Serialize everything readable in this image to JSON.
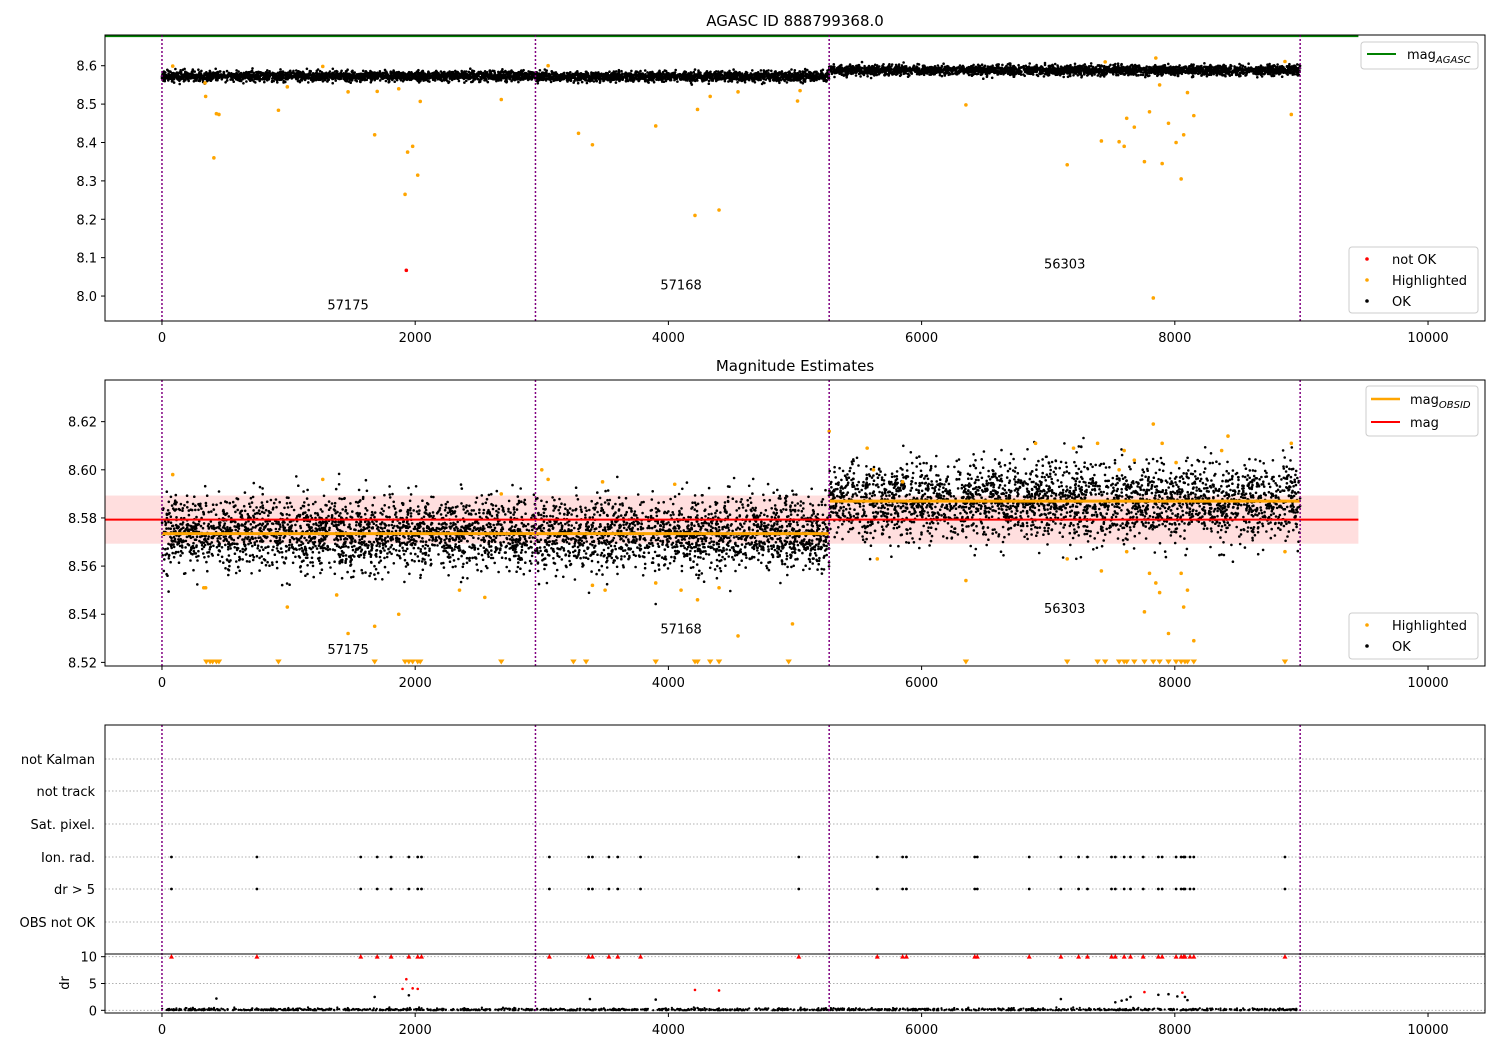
{
  "chart_data": [
    {
      "type": "scatter",
      "title": "AGASC ID 888799368.0",
      "xlim": [
        -450,
        10450
      ],
      "ylim": [
        7.935,
        8.68
      ],
      "x_ticks": [
        0,
        2000,
        4000,
        6000,
        8000,
        10000
      ],
      "y_ticks": [
        8.0,
        8.1,
        8.2,
        8.3,
        8.4,
        8.5,
        8.6
      ],
      "obsid_boundaries": [
        0,
        2950,
        5270,
        8990
      ],
      "obsid_labels": [
        {
          "text": "57175",
          "x": 1470,
          "y": 7.965
        },
        {
          "text": "57168",
          "x": 4100,
          "y": 8.017
        },
        {
          "text": "56303",
          "x": 7130,
          "y": 8.072
        }
      ],
      "mag_agasc": 8.677,
      "mag_agasc_range": [
        -450,
        9450
      ],
      "legend_upper": [
        {
          "name": "mag",
          "sub": "AGASC",
          "color": "#008000"
        }
      ],
      "legend_lower": [
        {
          "name": "not OK",
          "color": "#ff0000"
        },
        {
          "name": "Highlighted",
          "color": "#ffa500"
        },
        {
          "name": "OK",
          "color": "#000000"
        }
      ],
      "series": [
        {
          "name": "OK",
          "color": "#000000",
          "segments": [
            {
              "x": [
                0,
                2950
              ],
              "mean": 8.573,
              "sd": 0.007
            },
            {
              "x": [
                2950,
                5270
              ],
              "mean": 8.572,
              "sd": 0.007
            },
            {
              "x": [
                5270,
                8990
              ],
              "mean": 8.588,
              "sd": 0.0075
            }
          ]
        },
        {
          "name": "Highlighted",
          "color": "#ffa500",
          "x": [
            85,
            340,
            345,
            410,
            430,
            450,
            920,
            990,
            1270,
            1470,
            1680,
            1700,
            1870,
            1920,
            1940,
            1980,
            2020,
            2040,
            2680,
            3050,
            3290,
            3400,
            3900,
            4210,
            4230,
            4330,
            4400,
            4550,
            5020,
            5040,
            6350,
            7150,
            7420,
            7450,
            7560,
            7600,
            7620,
            7680,
            7760,
            7800,
            7830,
            7850,
            7880,
            7900,
            7950,
            8010,
            8050,
            8070,
            8100,
            8150,
            8870,
            8920
          ],
          "y": [
            8.599,
            8.555,
            8.52,
            8.36,
            8.475,
            8.473,
            8.484,
            8.545,
            8.598,
            8.532,
            8.42,
            8.533,
            8.54,
            8.265,
            8.375,
            8.39,
            8.315,
            8.507,
            8.512,
            8.6,
            8.424,
            8.394,
            8.443,
            8.21,
            8.486,
            8.52,
            8.224,
            8.532,
            8.508,
            8.535,
            8.498,
            8.342,
            8.404,
            8.61,
            8.402,
            8.39,
            8.463,
            8.44,
            8.35,
            8.48,
            7.995,
            8.62,
            8.55,
            8.345,
            8.45,
            8.4,
            8.305,
            8.42,
            8.53,
            8.47,
            8.611,
            8.473
          ]
        },
        {
          "name": "not OK",
          "color": "#ff0000",
          "x": [
            1930
          ],
          "y": [
            8.067
          ]
        }
      ]
    },
    {
      "type": "scatter",
      "title": "Magnitude Estimates",
      "xlim": [
        -450,
        10450
      ],
      "ylim": [
        8.5185,
        8.6373
      ],
      "x_ticks": [
        0,
        2000,
        4000,
        6000,
        8000,
        10000
      ],
      "y_ticks": [
        8.52,
        8.54,
        8.56,
        8.58,
        8.6,
        8.62
      ],
      "obsid_boundaries": [
        0,
        2950,
        5270,
        8990
      ],
      "obsid_labels": [
        {
          "text": "57175",
          "x": 1470,
          "y": 8.5235
        },
        {
          "text": "57168",
          "x": 4100,
          "y": 8.532
        },
        {
          "text": "56303",
          "x": 7130,
          "y": 8.5405
        }
      ],
      "mag": 8.5793,
      "mag_band": [
        8.5693,
        8.5893
      ],
      "mag_range": [
        -450,
        9450
      ],
      "mag_obsid": [
        {
          "x": [
            0,
            2950
          ],
          "y": 8.5735
        },
        {
          "x": [
            2950,
            5270
          ],
          "y": 8.5735
        },
        {
          "x": [
            5270,
            8990
          ],
          "y": 8.587
        }
      ],
      "legend_upper": [
        {
          "name": "mag",
          "sub": "OBSID",
          "color": "#ffa500"
        },
        {
          "name": "mag",
          "sub": "",
          "color": "#ff0000"
        }
      ],
      "legend_lower": [
        {
          "name": "Highlighted",
          "color": "#ffa500"
        },
        {
          "name": "OK",
          "color": "#000000"
        }
      ],
      "series": [
        {
          "name": "OK",
          "color": "#000000",
          "segments": [
            {
              "x": [
                0,
                2950
              ],
              "mean": 8.5735,
              "sd": 0.0075
            },
            {
              "x": [
                2950,
                5270
              ],
              "mean": 8.5735,
              "sd": 0.0075
            },
            {
              "x": [
                5270,
                8990
              ],
              "mean": 8.587,
              "sd": 0.008
            }
          ]
        },
        {
          "name": "Highlighted",
          "color": "#ffa500",
          "x": [
            85,
            330,
            345,
            990,
            1270,
            1380,
            1470,
            1680,
            1870,
            2350,
            2550,
            2680,
            3000,
            3050,
            3400,
            3480,
            3500,
            3900,
            4050,
            4100,
            4230,
            4400,
            4550,
            4980,
            5270,
            5570,
            5620,
            5650,
            5850,
            6350,
            6900,
            7150,
            7200,
            7390,
            7420,
            7560,
            7600,
            7620,
            7680,
            7760,
            7800,
            7830,
            7850,
            7880,
            7900,
            7950,
            8010,
            8050,
            8070,
            8100,
            8150,
            8370,
            8420,
            8870,
            8920
          ],
          "y": [
            8.598,
            8.551,
            8.551,
            8.543,
            8.596,
            8.548,
            8.532,
            8.535,
            8.54,
            8.55,
            8.547,
            8.59,
            8.6,
            8.596,
            8.552,
            8.595,
            8.55,
            8.553,
            8.594,
            8.55,
            8.546,
            8.551,
            8.531,
            8.536,
            8.616,
            8.609,
            8.6,
            8.563,
            8.595,
            8.554,
            8.611,
            8.563,
            8.609,
            8.611,
            8.558,
            8.6,
            8.608,
            8.566,
            8.604,
            8.541,
            8.557,
            8.619,
            8.553,
            8.549,
            8.611,
            8.532,
            8.603,
            8.557,
            8.543,
            8.55,
            8.529,
            8.608,
            8.614,
            8.566,
            8.611
          ]
        },
        {
          "name": "Highlighted (below axis)",
          "color": "#ffa500",
          "marker": "triangle-down",
          "y_value": "below 8.52",
          "x": [
            350,
            380,
            400,
            430,
            450,
            920,
            1680,
            1920,
            1950,
            1980,
            2020,
            2040,
            2680,
            3250,
            3350,
            3900,
            4210,
            4230,
            4330,
            4400,
            4950,
            6350,
            7150,
            7390,
            7450,
            7560,
            7600,
            7620,
            7680,
            7760,
            7830,
            7880,
            7950,
            8010,
            8050,
            8080,
            8100,
            8150,
            8870
          ]
        }
      ]
    },
    {
      "type": "scatter",
      "title": "",
      "xlim": [
        -450,
        10450
      ],
      "x_ticks": [
        0,
        2000,
        4000,
        6000,
        8000,
        10000
      ],
      "obsid_boundaries": [
        0,
        2950,
        5270,
        8990
      ],
      "flag_rows": [
        "not Kalman",
        "not track",
        "Sat. pixel.",
        "Ion. rad.",
        "dr > 5",
        "OBS not OK"
      ],
      "flag_x": [
        75,
        750,
        1570,
        1700,
        1810,
        1950,
        2020,
        2050,
        3060,
        3370,
        3400,
        3530,
        3600,
        3780,
        5030,
        5650,
        5850,
        5880,
        6420,
        6440,
        6850,
        7100,
        7240,
        7310,
        7500,
        7530,
        7600,
        7650,
        7750,
        7870,
        7900,
        8010,
        8050,
        8070,
        8080,
        8120,
        8150,
        8870
      ],
      "dr": {
        "ylabel": "dr",
        "ylim": [
          -0.5,
          10.5
        ],
        "y_ticks": [
          0,
          5,
          10
        ],
        "typical_max": 0.5,
        "clipped_at": 10,
        "outliers_x": [
          430,
          1680,
          1900,
          1930,
          1950,
          1980,
          2020,
          3380,
          3900,
          4210,
          4400,
          7100,
          7530,
          7580,
          7620,
          7650,
          7760,
          7870,
          7950,
          8020,
          8060,
          8080,
          8100
        ],
        "outliers_y": [
          2.2,
          2.5,
          4.0,
          5.8,
          2.8,
          4.1,
          4.0,
          2.1,
          2.0,
          3.8,
          3.7,
          2.1,
          1.5,
          1.8,
          2.0,
          2.5,
          3.4,
          2.9,
          3.0,
          2.6,
          3.3,
          2.5,
          1.9
        ]
      }
    }
  ]
}
